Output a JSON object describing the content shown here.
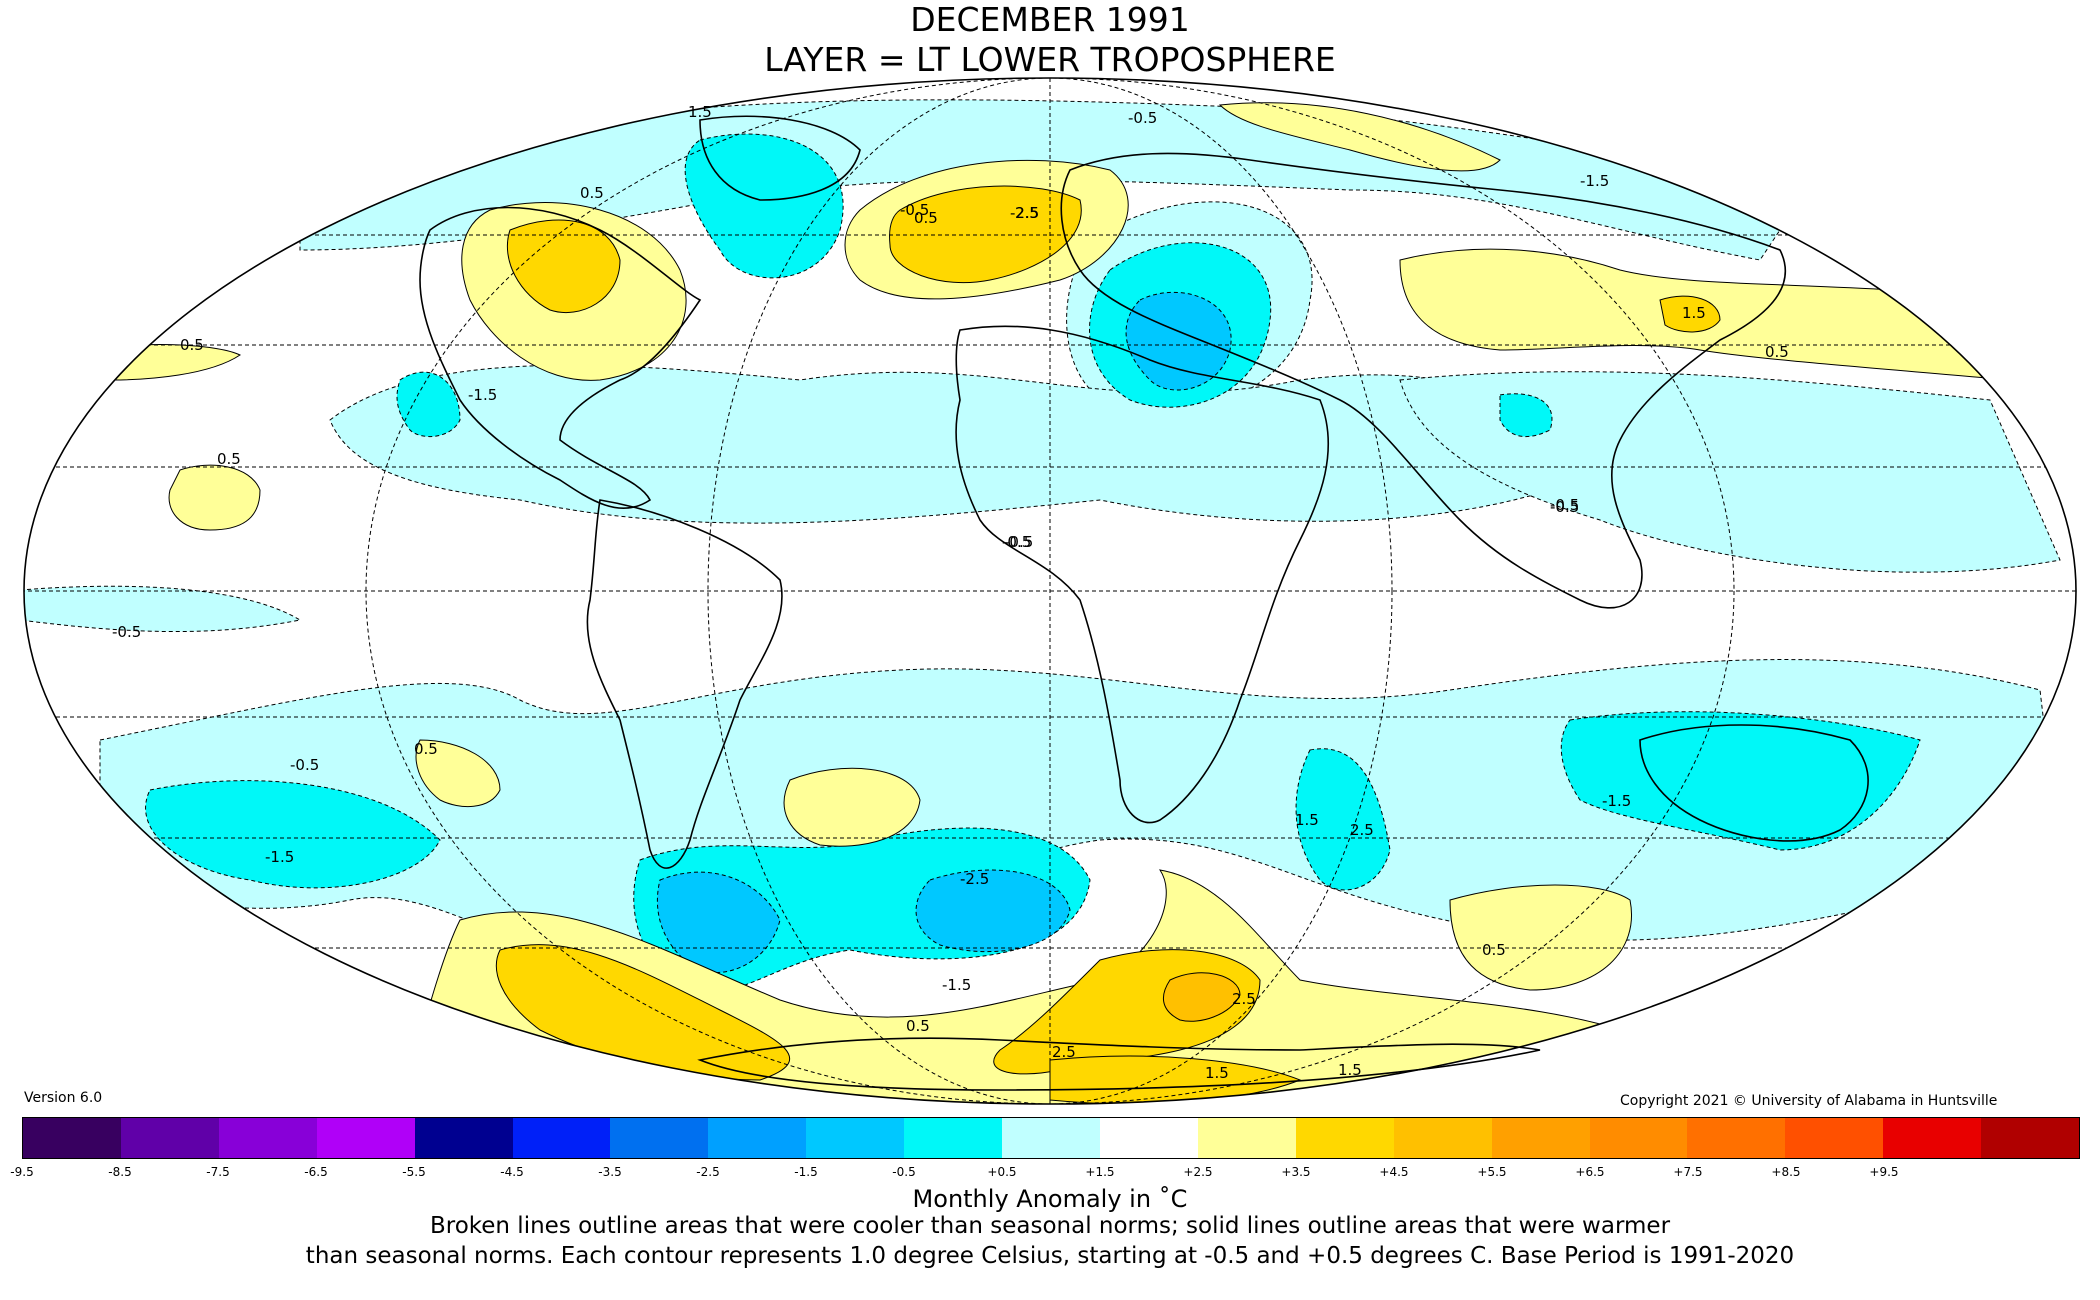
{
  "header": {
    "title_line1": "DECEMBER 1991",
    "title_line2": "LAYER = LT LOWER TROPOSPHERE"
  },
  "footer": {
    "version": "Version 6.0",
    "copyright": "Copyright 2021 © University of Alabama in Huntsville",
    "unit_label": "Monthly Anomaly in ˚C",
    "note_line1": "Broken lines outline areas that were cooler than seasonal norms; solid lines outline areas that were warmer",
    "note_line2": "than seasonal norms. Each contour represents 1.0 degree Celsius, starting at -0.5 and +0.5 degrees C. Base Period is 1991-2020"
  },
  "colorbar": {
    "ticks": [
      "-9.5",
      "-8.5",
      "-7.5",
      "-6.5",
      "-5.5",
      "-4.5",
      "-3.5",
      "-2.5",
      "-1.5",
      "-0.5",
      "+0.5",
      "+1.5",
      "+2.5",
      "+3.5",
      "+4.5",
      "+5.5",
      "+6.5",
      "+7.5",
      "+8.5",
      "+9.5"
    ],
    "colors": [
      "#380060",
      "#6000a8",
      "#8800d8",
      "#b000f8",
      "#000090",
      "#0020f8",
      "#0070f0",
      "#00a0ff",
      "#00c8ff",
      "#00f8f8",
      "#c0ffff",
      "#ffffff",
      "#ffff98",
      "#ffd800",
      "#ffc000",
      "#ffa000",
      "#ff8c00",
      "#ff7000",
      "#ff5000",
      "#e80000",
      "#b00000"
    ]
  },
  "map_labels": [
    {
      "text": "1.5"
    },
    {
      "text": "0.5"
    },
    {
      "text": "-0.5"
    },
    {
      "text": "-1.5"
    },
    {
      "text": "-2.5"
    },
    {
      "text": "2.5"
    },
    {
      "text": "-0.5"
    },
    {
      "text": "0.5"
    },
    {
      "text": "1.5"
    },
    {
      "text": "-1.5"
    },
    {
      "text": "-0.5"
    },
    {
      "text": "0.5"
    },
    {
      "text": "-0.5"
    },
    {
      "text": "-1.5"
    },
    {
      "text": "2.5"
    },
    {
      "text": "-2.5"
    },
    {
      "text": "0.5"
    },
    {
      "text": "-1.5"
    },
    {
      "text": "1.5"
    },
    {
      "text": "2.5"
    },
    {
      "text": "1.5"
    },
    {
      "text": "2.5"
    },
    {
      "text": "0.5"
    },
    {
      "text": "-0.5"
    },
    {
      "text": "-0.5"
    },
    {
      "text": "-1.5"
    },
    {
      "text": "1.5"
    },
    {
      "text": "0.5"
    },
    {
      "text": "-0.5"
    },
    {
      "text": "0.5"
    },
    {
      "text": "-0.5"
    },
    {
      "text": "0.5"
    }
  ],
  "colors": {
    "warm1": "#ffff98",
    "warm2": "#ffd800",
    "warm3": "#ffc000",
    "cool1": "#c0ffff",
    "cool2": "#00f8f8",
    "cool3": "#00c8ff",
    "cool4": "#00a0ff"
  }
}
